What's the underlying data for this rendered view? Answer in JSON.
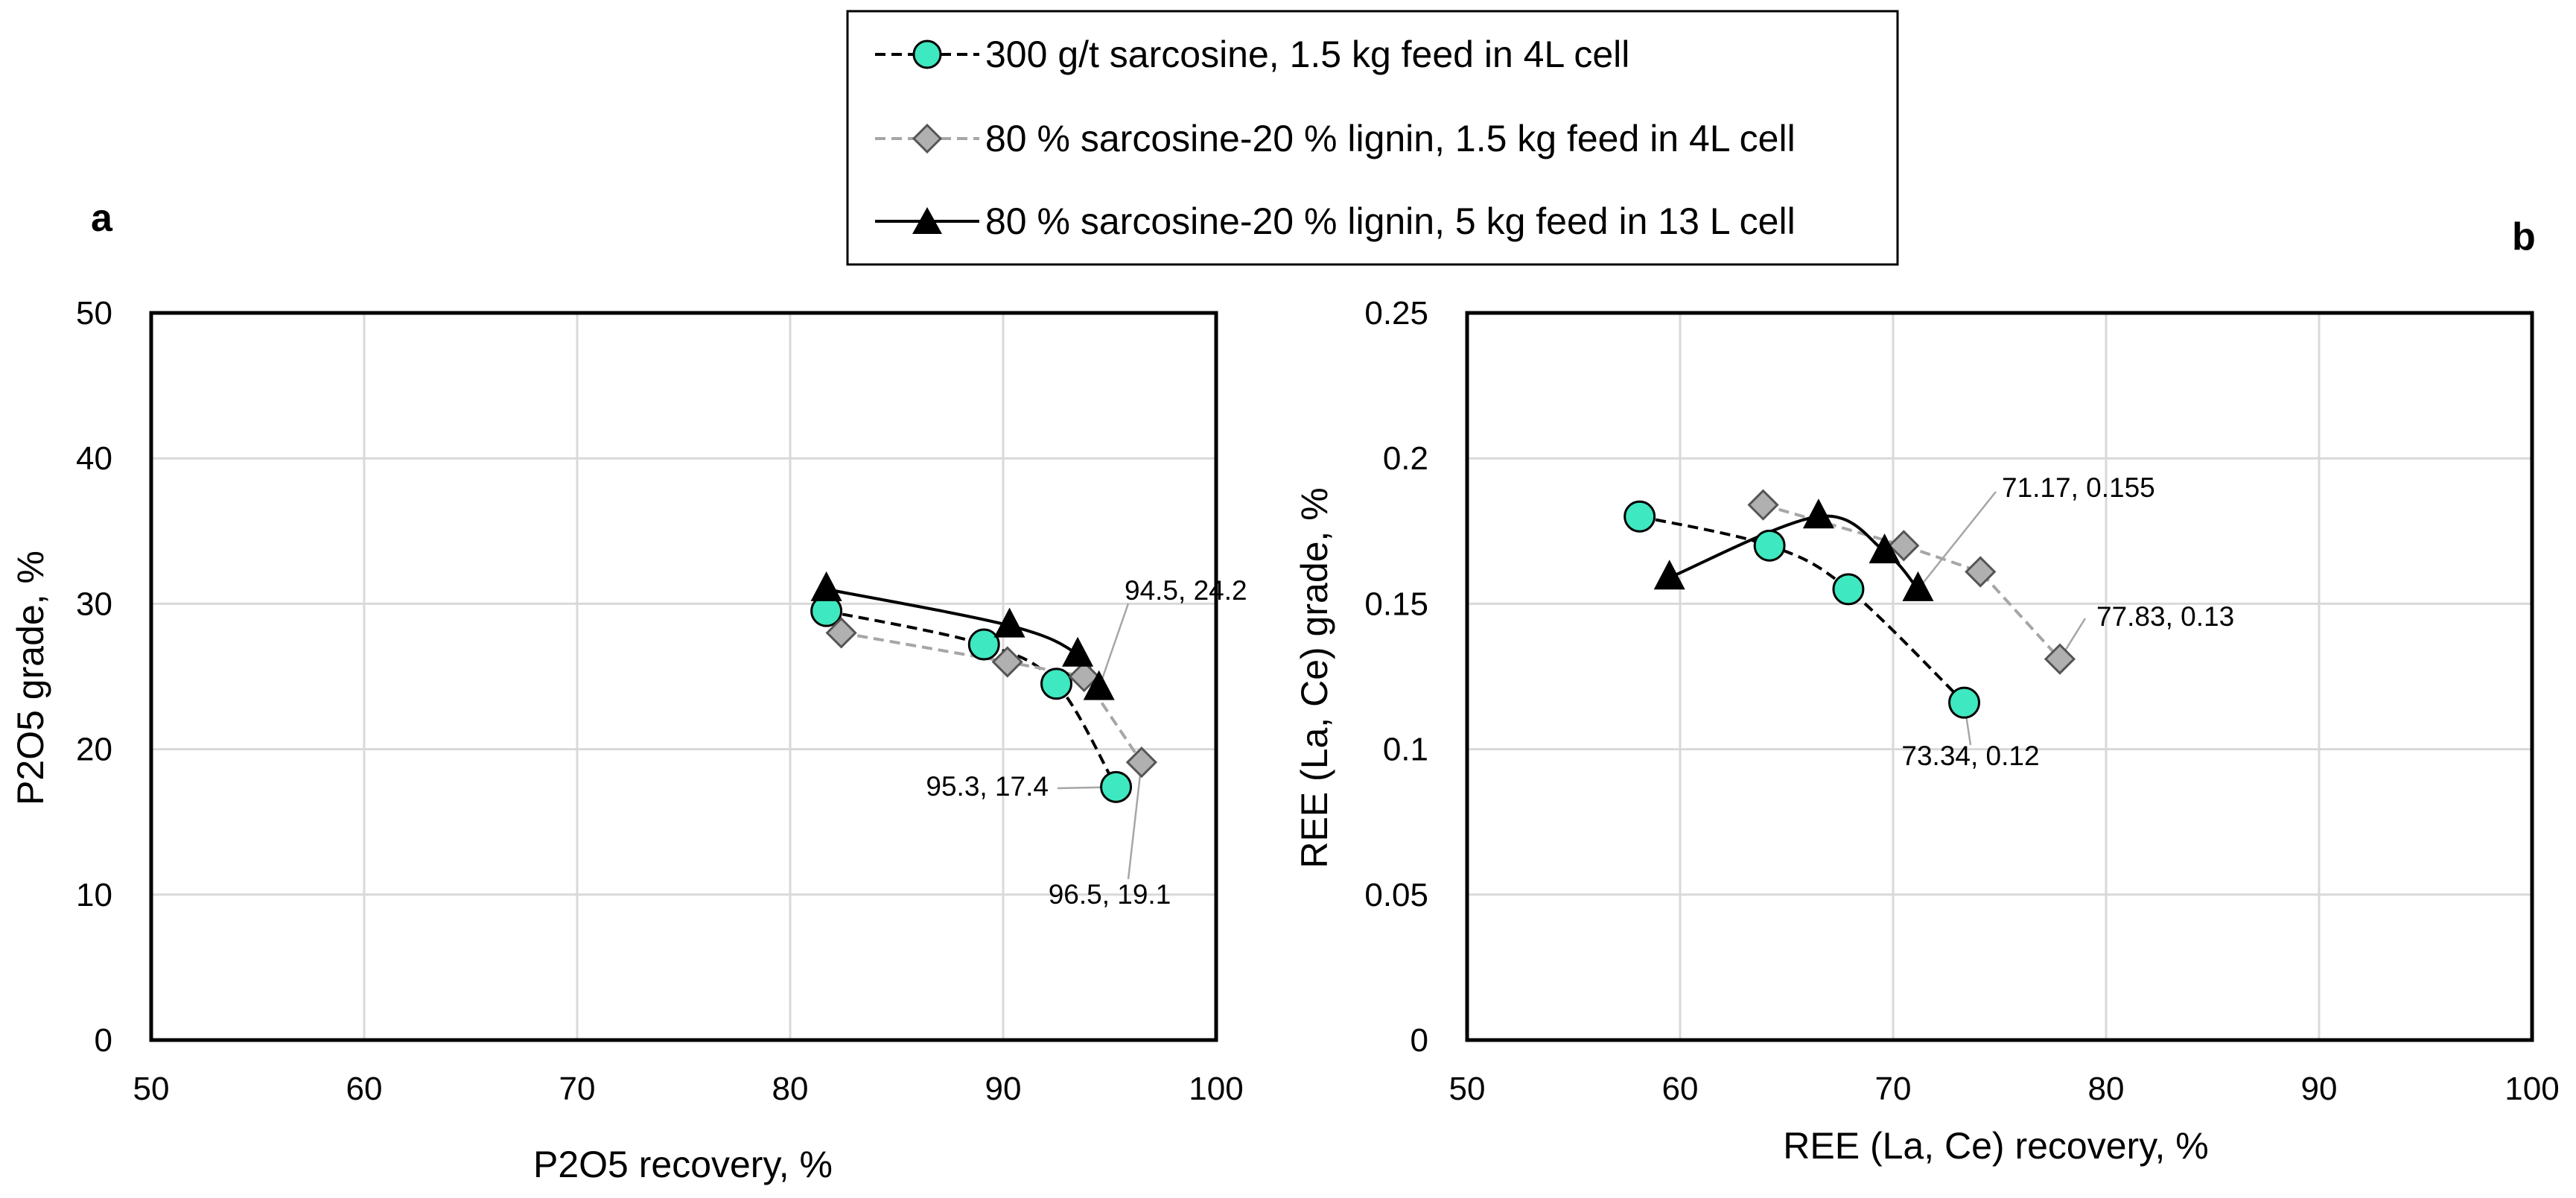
{
  "chart_data": [
    {
      "type": "line",
      "panel_label": "a",
      "title": "",
      "xlabel": "P2O5 recovery, %",
      "ylabel": "P2O5 grade, %",
      "xlim": [
        50,
        100
      ],
      "ylim": [
        0,
        50
      ],
      "xticks": [
        50,
        60,
        70,
        80,
        90,
        100
      ],
      "yticks": [
        0,
        10,
        20,
        30,
        40,
        50
      ],
      "grid": true,
      "series": [
        {
          "name": "300 g/t sarcosine, 1.5 kg feed in 4L cell",
          "x": [
            81.7,
            89.1,
            92.5,
            95.3
          ],
          "y": [
            29.5,
            27.2,
            24.5,
            17.4
          ]
        },
        {
          "name": "80 % sarcosine-20 % lignin, 1.5 kg feed in 4L cell",
          "x": [
            82.4,
            90.2,
            93.8,
            96.5
          ],
          "y": [
            28.0,
            26.0,
            25.0,
            19.1
          ]
        },
        {
          "name": "80 % sarcosine-20 % lignin, 5 kg feed in 13 L cell",
          "x": [
            81.7,
            90.3,
            93.5,
            94.5
          ],
          "y": [
            31.0,
            28.5,
            26.5,
            24.2
          ]
        }
      ],
      "annotations": [
        {
          "text": "94.5, 24.2",
          "x": 94.5,
          "y": 24.2
        },
        {
          "text": "95.3, 17.4",
          "x": 95.3,
          "y": 17.4
        },
        {
          "text": "96.5, 19.1",
          "x": 96.5,
          "y": 19.1
        }
      ]
    },
    {
      "type": "line",
      "panel_label": "b",
      "title": "",
      "xlabel": "REE (La, Ce) recovery, %",
      "ylabel": "REE (La, Ce) grade, %",
      "xlim": [
        50,
        100
      ],
      "ylim": [
        0,
        0.25
      ],
      "xticks": [
        50,
        60,
        70,
        80,
        90,
        100
      ],
      "yticks": [
        0,
        0.05,
        0.1,
        0.15,
        0.2,
        0.25
      ],
      "grid": true,
      "series": [
        {
          "name": "300 g/t sarcosine, 1.5 kg feed in 4L cell",
          "x": [
            58.1,
            64.2,
            67.9,
            73.34
          ],
          "y": [
            0.18,
            0.17,
            0.155,
            0.116
          ]
        },
        {
          "name": "80 % sarcosine-20 % lignin, 1.5 kg feed in 4L cell",
          "x": [
            63.9,
            70.5,
            74.1,
            77.83
          ],
          "y": [
            0.184,
            0.17,
            0.161,
            0.131
          ]
        },
        {
          "name": "80 % sarcosine-20 % lignin, 5 kg feed in 13 L cell",
          "x": [
            59.5,
            66.5,
            69.6,
            71.17
          ],
          "y": [
            0.159,
            0.18,
            0.168,
            0.155
          ]
        }
      ],
      "annotations": [
        {
          "text": "71.17, 0.155",
          "x": 71.17,
          "y": 0.155
        },
        {
          "text": "77.83, 0.13",
          "x": 77.83,
          "y": 0.131
        },
        {
          "text": "73.34, 0.12",
          "x": 73.34,
          "y": 0.116
        }
      ]
    }
  ],
  "legend": {
    "items": [
      {
        "label": "300 g/t sarcosine, 1.5 kg feed in 4L cell",
        "marker": "circle",
        "line": "dashed",
        "color": "#3ee8c0",
        "line_color": "#000000"
      },
      {
        "label": "80 % sarcosine-20 % lignin, 1.5 kg feed in 4L cell",
        "marker": "diamond",
        "line": "dashed",
        "color": "#b0b0b0",
        "line_color": "#a6a6a6"
      },
      {
        "label": "80 % sarcosine-20 % lignin, 5 kg feed in 13 L cell",
        "marker": "triangle",
        "line": "solid",
        "color": "#000000",
        "line_color": "#000000"
      }
    ]
  }
}
